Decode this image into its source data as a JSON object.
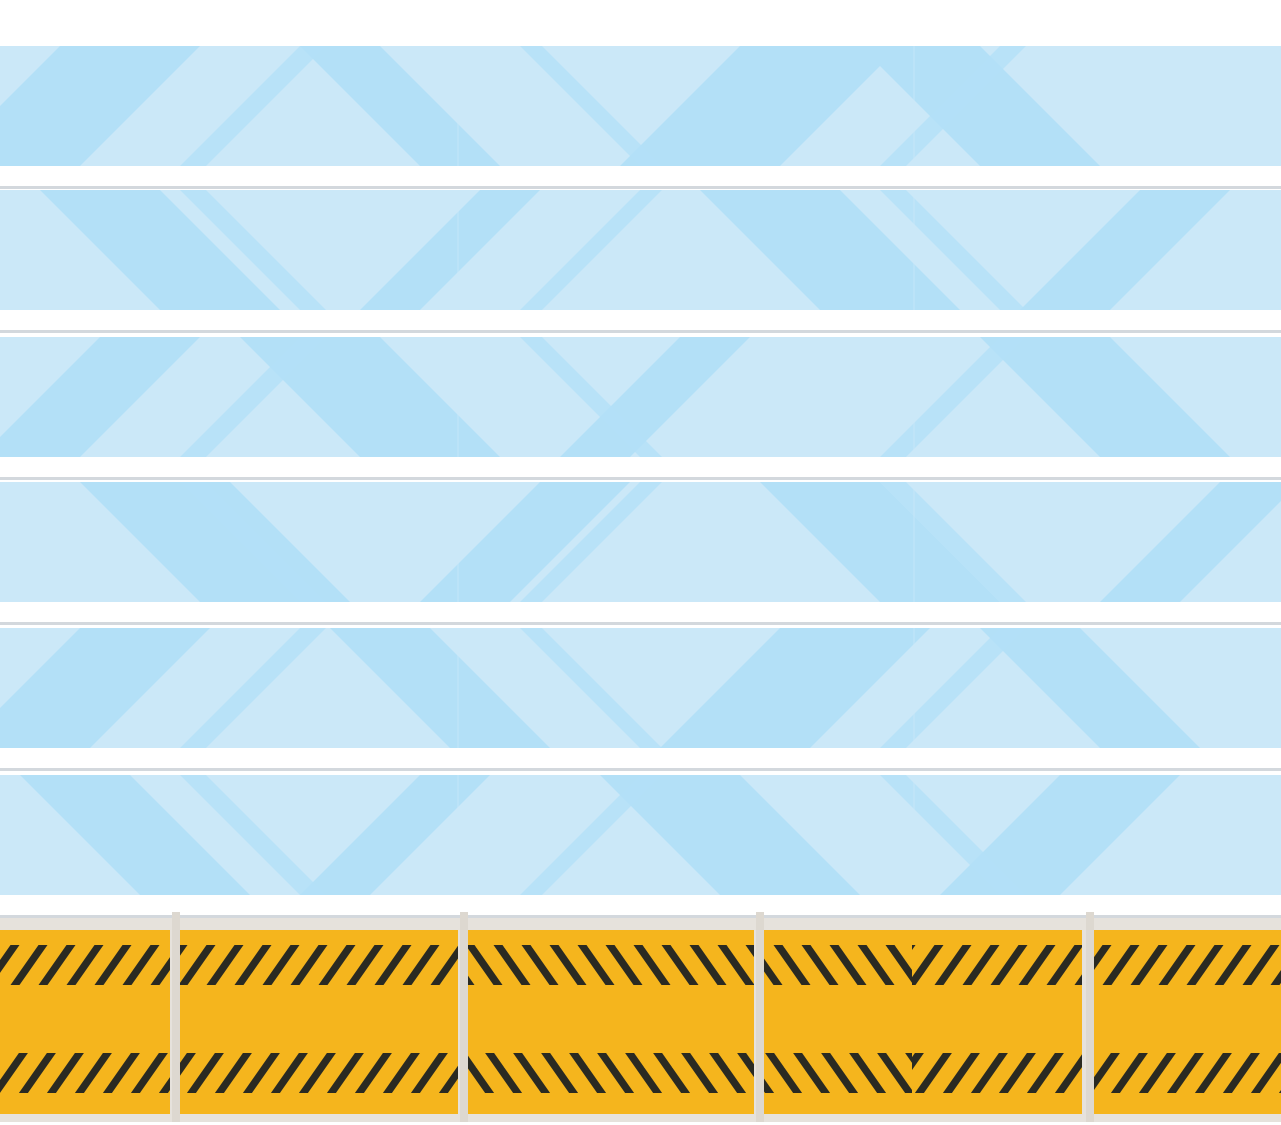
{
  "colors": {
    "background": "#ffffff",
    "glass_light": "#cbe8f8",
    "glass_dark": "#b3e0f7",
    "glass_seam": "#d3d8dd",
    "hazard_yellow": "#f5b51d",
    "hazard_stripe": "#2a2a22",
    "hazard_border": "#e6e2dc",
    "post": "#ddd8d0"
  },
  "glass_panels": [
    {
      "name": "glass-panel-1"
    },
    {
      "name": "glass-panel-2"
    },
    {
      "name": "glass-panel-3"
    },
    {
      "name": "glass-panel-4"
    },
    {
      "name": "glass-panel-5"
    },
    {
      "name": "glass-panel-6"
    }
  ],
  "hazard_segments": [
    {
      "name": "hazard-segment-1",
      "stripe_direction": "forward"
    },
    {
      "name": "hazard-segment-2",
      "stripe_direction": "forward"
    },
    {
      "name": "hazard-segment-3",
      "stripe_direction": "backward"
    },
    {
      "name": "hazard-segment-4",
      "stripe_direction": "backward"
    },
    {
      "name": "hazard-segment-5",
      "stripe_direction": "forward"
    },
    {
      "name": "hazard-segment-6",
      "stripe_direction": "forward"
    }
  ]
}
